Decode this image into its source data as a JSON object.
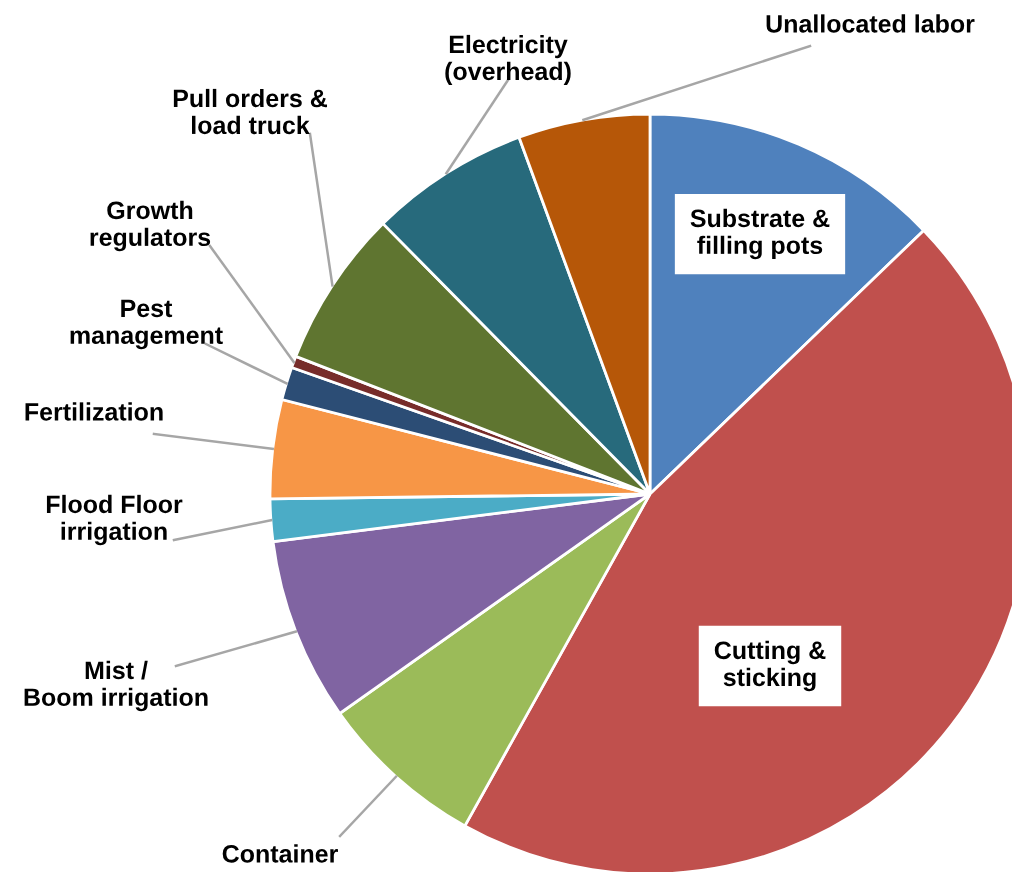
{
  "chart_data": {
    "type": "pie",
    "categories": [
      "Substrate & filling pots",
      "Cutting & sticking",
      "Container",
      "Mist / Boom irrigation",
      "Flood Floor irrigation",
      "Fertilization",
      "Pest management",
      "Growth regulators",
      "Pull orders & load truck",
      "Electricity (overhead)",
      "Unallocated labor"
    ],
    "values": [
      12.8,
      45.3,
      7.1,
      7.8,
      1.8,
      4.2,
      1.4,
      0.5,
      6.7,
      6.8,
      5.6
    ],
    "colors": [
      "#4f81bd",
      "#c0504d",
      "#9bbb59",
      "#8064a2",
      "#4bacc6",
      "#f79646",
      "#2c4d75",
      "#772c2a",
      "#5f7530",
      "#276a7c",
      "#b65708"
    ]
  }
}
